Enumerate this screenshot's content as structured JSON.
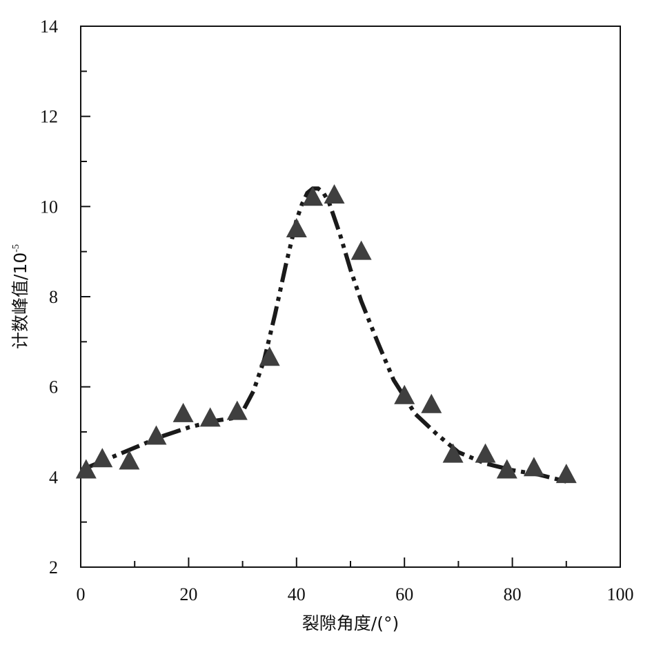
{
  "chart_data": {
    "type": "scatter",
    "title": "",
    "xlabel": "裂隙角度/(°)",
    "ylabel_main": "计数峰值/10",
    "ylabel_exponent": "-5",
    "xlim": [
      0,
      100
    ],
    "ylim": [
      2,
      14
    ],
    "x_ticks": [
      "0",
      "20",
      "40",
      "60",
      "80",
      "100"
    ],
    "y_ticks": [
      "2",
      "4",
      "6",
      "8",
      "10",
      "12",
      "14"
    ],
    "x_tick_values": [
      0,
      20,
      40,
      60,
      80,
      100
    ],
    "y_tick_values": [
      2,
      4,
      6,
      8,
      10,
      12,
      14
    ],
    "x_minor_step": 10,
    "y_minor_step": 1,
    "grid": false,
    "series": [
      {
        "marker": "triangle",
        "color": "#3f3f3f",
        "x": [
          1,
          4,
          9,
          14,
          19,
          24,
          29,
          35,
          40,
          43,
          47,
          52,
          60,
          65,
          69,
          75,
          79,
          84,
          90
        ],
        "y": [
          4.15,
          4.4,
          4.35,
          4.9,
          5.4,
          5.3,
          5.45,
          6.65,
          9.5,
          10.2,
          10.25,
          9.0,
          5.8,
          5.6,
          4.5,
          4.5,
          4.15,
          4.2,
          4.05
        ]
      }
    ],
    "fit_curve": {
      "style": "dash-dot-dot",
      "color": "#1a1a1a",
      "x": [
        0,
        5,
        10,
        15,
        20,
        25,
        28,
        30,
        32,
        34,
        36,
        38,
        40,
        41,
        42,
        43,
        44,
        45,
        46,
        48,
        50,
        52,
        55,
        58,
        62,
        66,
        70,
        75,
        80,
        85,
        90
      ],
      "y": [
        4.15,
        4.4,
        4.65,
        4.9,
        5.1,
        5.25,
        5.3,
        5.45,
        5.9,
        6.6,
        7.6,
        8.7,
        9.7,
        10.05,
        10.3,
        10.4,
        10.4,
        10.3,
        10.1,
        9.4,
        8.6,
        7.9,
        7.0,
        6.15,
        5.4,
        4.95,
        4.55,
        4.3,
        4.15,
        4.05,
        3.9
      ]
    }
  }
}
